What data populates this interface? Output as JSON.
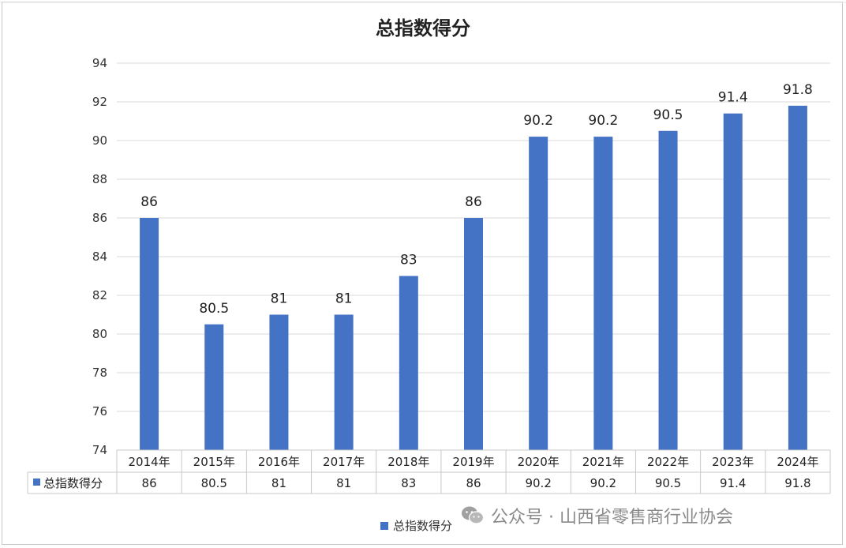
{
  "chart_data": {
    "type": "bar",
    "title": "总指数得分",
    "categories": [
      "2014年",
      "2015年",
      "2016年",
      "2017年",
      "2018年",
      "2019年",
      "2020年",
      "2021年",
      "2022年",
      "2023年",
      "2024年"
    ],
    "series": [
      {
        "name": "总指数得分",
        "values": [
          86,
          80.5,
          81,
          81,
          83,
          86,
          90.2,
          90.2,
          90.5,
          91.4,
          91.8
        ],
        "color": "#4472C4"
      }
    ],
    "ylim": [
      74,
      94
    ],
    "yticks": [
      74,
      76,
      78,
      80,
      82,
      84,
      86,
      88,
      90,
      92,
      94
    ],
    "value_labels": [
      "86",
      "80.5",
      "81",
      "81",
      "83",
      "86",
      "90.2",
      "90.2",
      "90.5",
      "91.4",
      "91.8"
    ],
    "grid": true,
    "legend": "bottom",
    "data_table": true,
    "xlabel": "",
    "ylabel": ""
  },
  "watermark": {
    "text": "公众号 · 山西省零售商行业协会",
    "icon": "wechat-icon"
  },
  "colors": {
    "bar": "#4472C4",
    "grid": "#d9d9d9",
    "text": "#222222"
  }
}
